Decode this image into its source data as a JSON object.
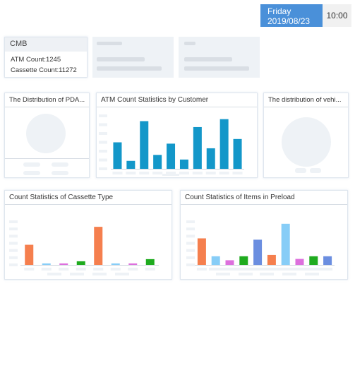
{
  "header": {
    "day": "Friday",
    "date": "2019/08/23",
    "time": "10:00"
  },
  "summary": {
    "title": "CMB",
    "atm_count_label": "ATM Count:1245",
    "cassette_count_label": "Cassette Count:11272"
  },
  "panels": {
    "pda": {
      "title": "The Distribution of PDA..."
    },
    "atm": {
      "title": "ATM Count Statistics by Customer"
    },
    "vehicle": {
      "title": "The distribution of vehi..."
    },
    "cassette": {
      "title": "Count Statistics of Cassette Type"
    },
    "preload": {
      "title": "Count Statistics of Items in Preload"
    }
  },
  "chart_data": [
    {
      "type": "bar",
      "title": "ATM Count Statistics by Customer",
      "color": "#1397c9",
      "values": [
        40,
        12,
        72,
        21,
        38,
        14,
        63,
        31,
        75,
        45
      ],
      "ylim": [
        0,
        80
      ]
    },
    {
      "type": "bar",
      "title": "Count Statistics of Cassette Type",
      "values": [
        28,
        2,
        2,
        5,
        53,
        2,
        2,
        8
      ],
      "colors": [
        "#f57f4e",
        "#87cdf7",
        "#dd70dd",
        "#1fab1f",
        "#f57f4e",
        "#87cdf7",
        "#dd70dd",
        "#1fab1f"
      ],
      "ylim": [
        0,
        60
      ]
    },
    {
      "type": "bar",
      "title": "Count Statistics of Items in Preload",
      "values": [
        40,
        13,
        7,
        13,
        38,
        15,
        62,
        9,
        13,
        13
      ],
      "colors": [
        "#f57f4e",
        "#87cdf7",
        "#dd70dd",
        "#1fab1f",
        "#6b8ee0",
        "#f57f4e",
        "#87cdf7",
        "#dd70dd",
        "#1fab1f",
        "#6b8ee0"
      ],
      "ylim": [
        0,
        65
      ]
    }
  ]
}
